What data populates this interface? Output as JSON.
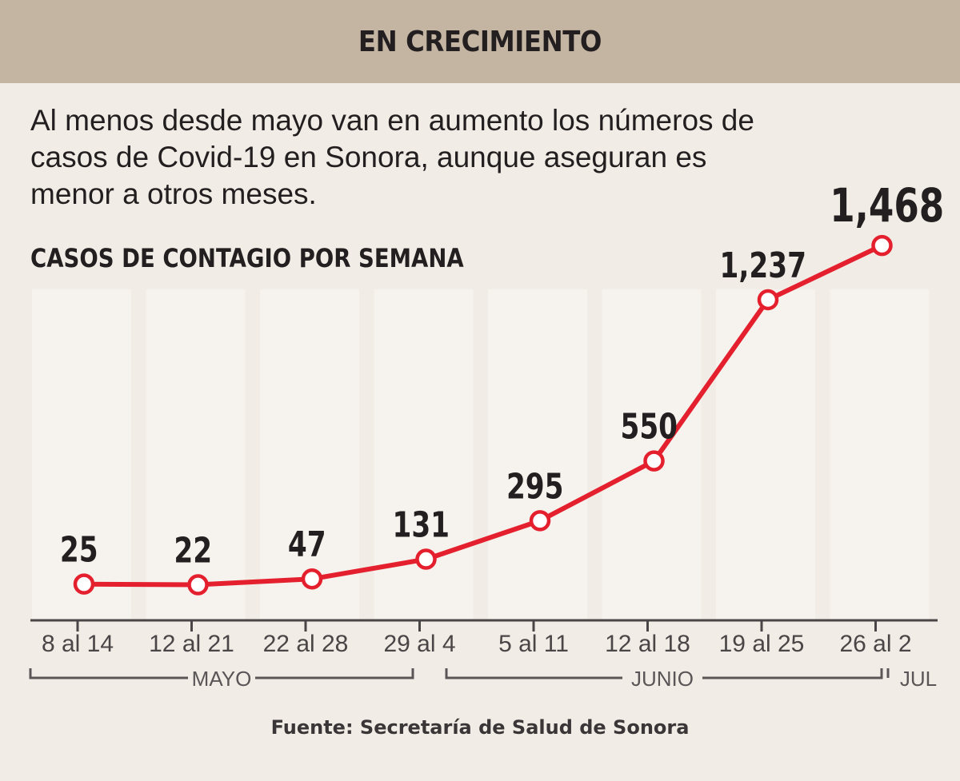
{
  "header": {
    "title": "EN CRECIMIENTO"
  },
  "intro": "Al menos desde mayo van en aumento los números de casos de Covid-19 en Sonora, aunque aseguran es menor a otros meses.",
  "subtitle": "CASOS DE CONTAGIO POR SEMANA",
  "source": "Fuente: Secretaría de Salud de Sonora",
  "colors": {
    "line": "#e5202e",
    "highlight": "#e5202e",
    "header_bg": "#c4b5a2",
    "text": "#231f20"
  },
  "chart_data": {
    "type": "line",
    "title": "CASOS DE CONTAGIO POR SEMANA",
    "categories": [
      "8 al 14",
      "12 al 21",
      "22 al 28",
      "29 al 4",
      "5 al 11",
      "12 al 18",
      "19 al 25",
      "26 al 2"
    ],
    "values": [
      25,
      22,
      47,
      131,
      295,
      550,
      1237,
      1468
    ],
    "labels": [
      "25",
      "22",
      "47",
      "131",
      "295",
      "550",
      "1,237",
      "1,468"
    ],
    "months": [
      "MAYO",
      "JUNIO",
      "JUL"
    ],
    "highlight_last": true,
    "grid": false
  }
}
